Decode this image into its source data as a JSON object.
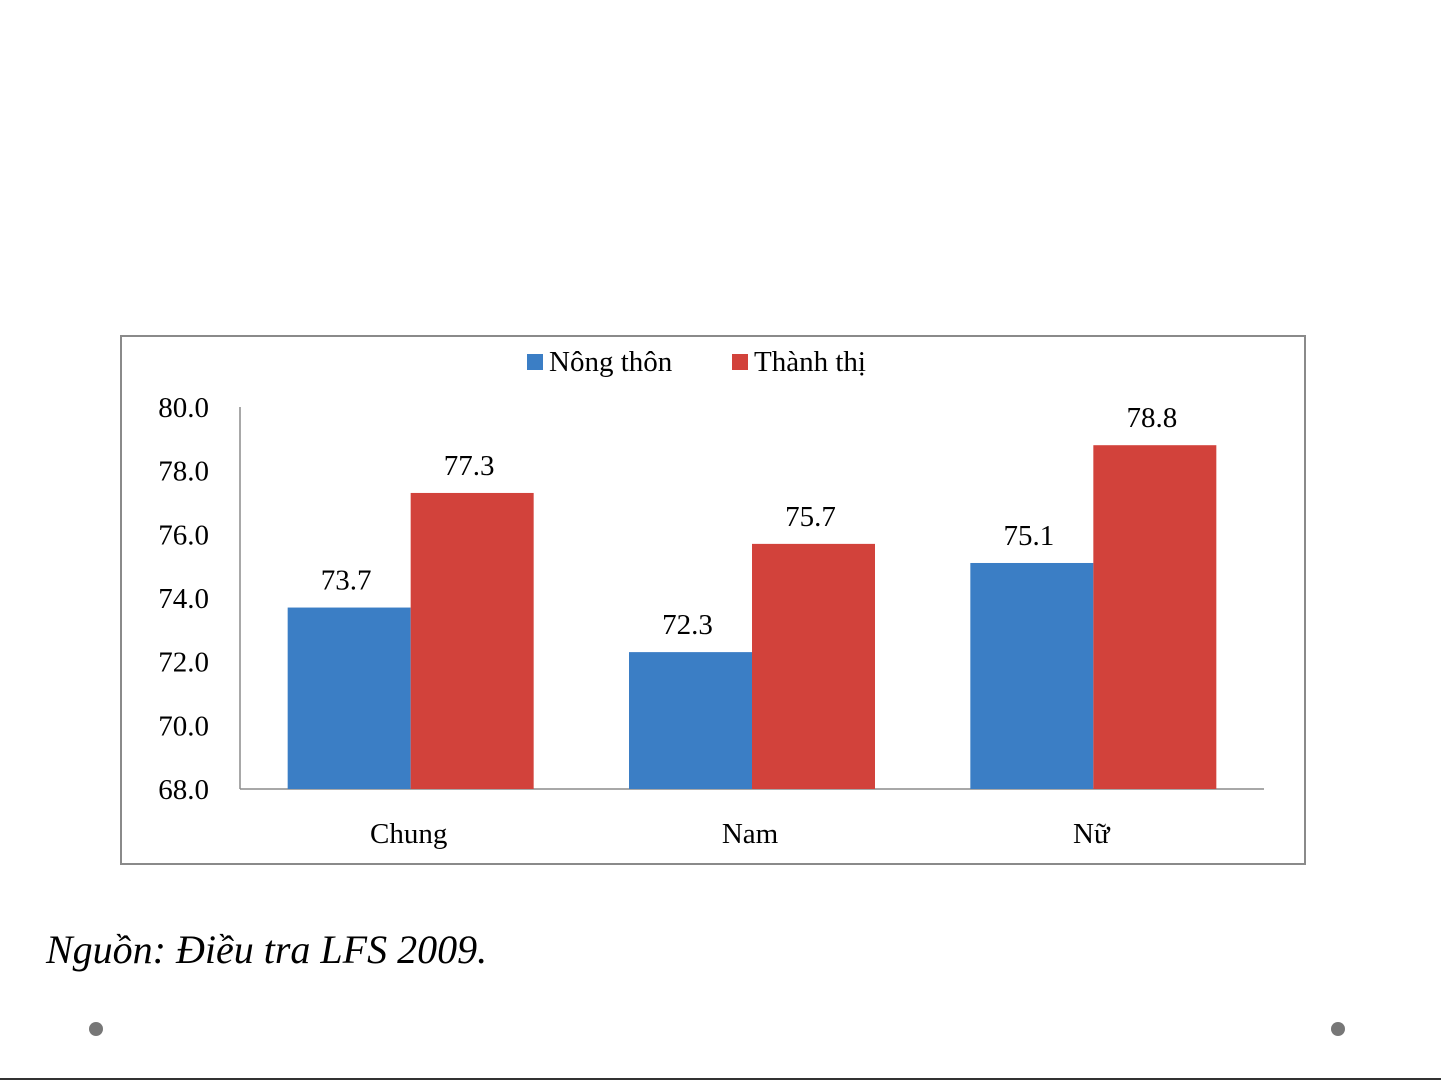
{
  "chart_data": {
    "type": "bar",
    "categories": [
      "Chung",
      "Nam",
      "Nữ"
    ],
    "series": [
      {
        "name": "Nông thôn",
        "color": "#3b7ec5",
        "values": [
          73.7,
          72.3,
          75.1
        ]
      },
      {
        "name": "Thành thị",
        "color": "#d2423b",
        "values": [
          77.3,
          75.7,
          78.8
        ]
      }
    ],
    "ylim": [
      68.0,
      80.0
    ],
    "yticks": [
      "80.0",
      "78.0",
      "76.0",
      "74.0",
      "72.0",
      "70.0",
      "68.0"
    ],
    "data_labels": [
      [
        "73.7",
        "72.3",
        "75.1"
      ],
      [
        "77.3",
        "75.7",
        "78.8"
      ]
    ],
    "legend_position": "top",
    "grid": false
  },
  "footer": {
    "source": "Nguồn: Điều tra LFS 2009."
  }
}
